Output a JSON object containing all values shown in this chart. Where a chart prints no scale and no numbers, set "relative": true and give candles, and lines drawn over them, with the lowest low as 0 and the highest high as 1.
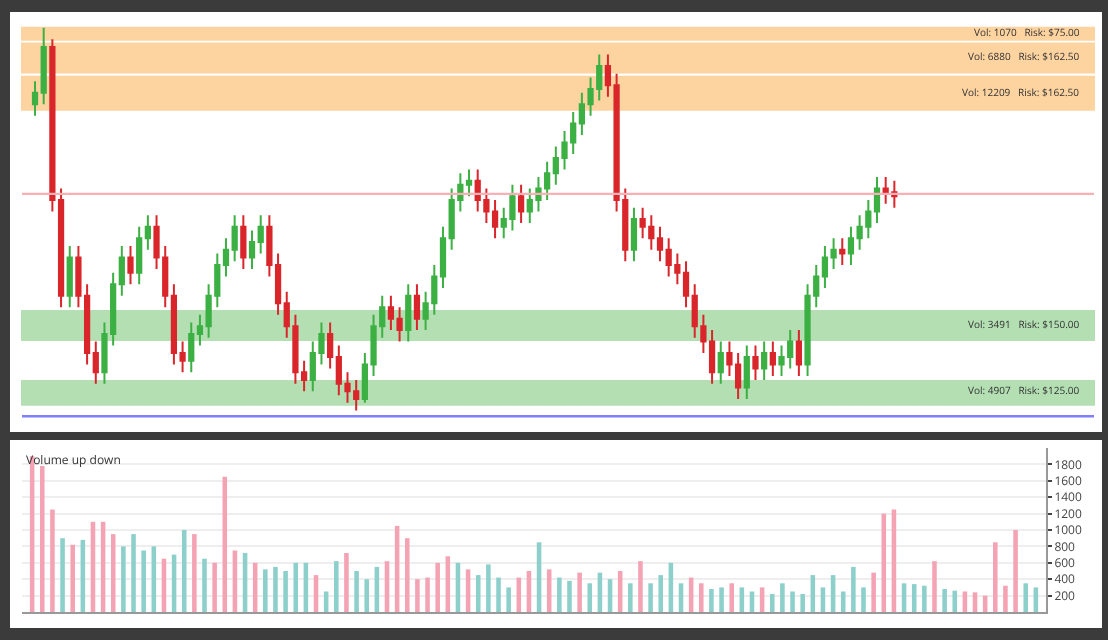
{
  "chart_data": [
    {
      "type": "candlestick",
      "relative": true,
      "categories": [
        null,
        null,
        null,
        null,
        null,
        null,
        null,
        null,
        null,
        null,
        null,
        null,
        null,
        null,
        null,
        null,
        null,
        null,
        null,
        null,
        null,
        null,
        null,
        null,
        null,
        null,
        null,
        null,
        null,
        null,
        null,
        null,
        null,
        null,
        null,
        null,
        null,
        null,
        null,
        null,
        null,
        null,
        null,
        null,
        null,
        null,
        null,
        null,
        null,
        null,
        null,
        null,
        null,
        null,
        null,
        null,
        null,
        null,
        null,
        null,
        null,
        null,
        null,
        null,
        null,
        null,
        null,
        null,
        null,
        null,
        null,
        null,
        null,
        null,
        null,
        null,
        null,
        null,
        null,
        null,
        null,
        null,
        null,
        null,
        null,
        null,
        null,
        null,
        null,
        null,
        null,
        null,
        null,
        null,
        null,
        null,
        null,
        null,
        null,
        null
      ],
      "series": [
        {
          "colors": [
            "#3cb043",
            "#3cb043",
            "#d9262b",
            "#d9262b",
            "#3cb043",
            "#d9262b",
            "#d9262b",
            "#d9262b",
            "#3cb043",
            "#3cb043",
            "#3cb043",
            "#d9262b",
            "#3cb043",
            "#3cb043",
            "#d9262b",
            "#d9262b",
            "#d9262b",
            "#d9262b",
            "#3cb043",
            "#3cb043",
            "#3cb043",
            "#3cb043",
            "#3cb043",
            "#3cb043",
            "#d9262b",
            "#3cb043",
            "#3cb043",
            "#d9262b",
            "#d9262b",
            "#d9262b",
            "#d9262b",
            "#d9262b",
            "#3cb043",
            "#3cb043",
            "#d9262b",
            "#d9262b",
            "#d9262b",
            "#d9262b",
            "#3cb043",
            "#3cb043",
            "#3cb043",
            "#d9262b",
            "#d9262b",
            "#3cb043",
            "#d9262b",
            "#3cb043",
            "#3cb043",
            "#3cb043",
            "#3cb043",
            "#3cb043",
            "#3cb043",
            "#d9262b",
            "#d9262b",
            "#d9262b",
            "#3cb043",
            "#3cb043",
            "#d9262b",
            "#3cb043",
            "#3cb043",
            "#3cb043",
            "#3cb043",
            "#3cb043",
            "#3cb043",
            "#3cb043",
            "#3cb043",
            "#3cb043",
            "#d9262b",
            "#d9262b",
            "#d9262b",
            "#3cb043",
            "#d9262b",
            "#d9262b",
            "#d9262b",
            "#d9262b",
            "#d9262b",
            "#d9262b",
            "#d9262b",
            "#d9262b",
            "#d9262b",
            "#3cb043",
            "#d9262b",
            "#d9262b",
            "#3cb043",
            "#d9262b",
            "#3cb043",
            "#d9262b",
            "#3cb043",
            "#3cb043",
            "#d9262b",
            "#3cb043",
            "#3cb043",
            "#3cb043",
            "#3cb043",
            "#d9262b",
            "#3cb043",
            "#3cb043",
            "#3cb043",
            "#3cb043",
            "#d9262b",
            "#d9262b"
          ],
          "ohlc": [
            [
              0.8,
              0.86,
              0.77,
              0.83
            ],
            [
              0.83,
              1.0,
              0.8,
              0.95
            ],
            [
              0.95,
              0.97,
              0.52,
              0.55
            ],
            [
              0.55,
              0.58,
              0.27,
              0.3
            ],
            [
              0.3,
              0.43,
              0.27,
              0.4
            ],
            [
              0.4,
              0.43,
              0.27,
              0.3
            ],
            [
              0.3,
              0.33,
              0.12,
              0.15
            ],
            [
              0.15,
              0.18,
              0.07,
              0.1
            ],
            [
              0.1,
              0.23,
              0.07,
              0.2
            ],
            [
              0.2,
              0.36,
              0.17,
              0.33
            ],
            [
              0.33,
              0.43,
              0.3,
              0.4
            ],
            [
              0.4,
              0.43,
              0.33,
              0.36
            ],
            [
              0.36,
              0.48,
              0.33,
              0.45
            ],
            [
              0.45,
              0.51,
              0.42,
              0.48
            ],
            [
              0.48,
              0.51,
              0.37,
              0.4
            ],
            [
              0.4,
              0.43,
              0.27,
              0.3
            ],
            [
              0.3,
              0.33,
              0.12,
              0.15
            ],
            [
              0.15,
              0.18,
              0.1,
              0.13
            ],
            [
              0.13,
              0.23,
              0.1,
              0.2
            ],
            [
              0.2,
              0.25,
              0.17,
              0.22
            ],
            [
              0.22,
              0.33,
              0.19,
              0.3
            ],
            [
              0.3,
              0.41,
              0.27,
              0.38
            ],
            [
              0.38,
              0.45,
              0.35,
              0.42
            ],
            [
              0.42,
              0.51,
              0.39,
              0.48
            ],
            [
              0.48,
              0.51,
              0.37,
              0.4
            ],
            [
              0.4,
              0.47,
              0.37,
              0.44
            ],
            [
              0.44,
              0.51,
              0.41,
              0.48
            ],
            [
              0.48,
              0.51,
              0.35,
              0.38
            ],
            [
              0.38,
              0.41,
              0.25,
              0.28
            ],
            [
              0.28,
              0.31,
              0.19,
              0.22
            ],
            [
              0.22,
              0.25,
              0.07,
              0.1
            ],
            [
              0.1,
              0.13,
              0.05,
              0.08
            ],
            [
              0.08,
              0.18,
              0.05,
              0.15
            ],
            [
              0.15,
              0.23,
              0.12,
              0.2
            ],
            [
              0.2,
              0.23,
              0.11,
              0.14
            ],
            [
              0.14,
              0.17,
              0.04,
              0.07
            ],
            [
              0.07,
              0.1,
              0.02,
              0.05
            ],
            [
              0.05,
              0.08,
              0.0,
              0.03
            ],
            [
              0.03,
              0.15,
              0.02,
              0.12
            ],
            [
              0.12,
              0.25,
              0.09,
              0.22
            ],
            [
              0.22,
              0.3,
              0.19,
              0.27
            ],
            [
              0.27,
              0.3,
              0.21,
              0.24
            ],
            [
              0.24,
              0.27,
              0.18,
              0.21
            ],
            [
              0.21,
              0.33,
              0.18,
              0.3
            ],
            [
              0.3,
              0.33,
              0.21,
              0.24
            ],
            [
              0.24,
              0.31,
              0.21,
              0.28
            ],
            [
              0.28,
              0.38,
              0.25,
              0.35
            ],
            [
              0.35,
              0.48,
              0.32,
              0.45
            ],
            [
              0.45,
              0.58,
              0.42,
              0.55
            ],
            [
              0.55,
              0.62,
              0.52,
              0.59
            ],
            [
              0.59,
              0.63,
              0.56,
              0.6
            ],
            [
              0.6,
              0.63,
              0.52,
              0.55
            ],
            [
              0.55,
              0.58,
              0.49,
              0.52
            ],
            [
              0.52,
              0.55,
              0.45,
              0.48
            ],
            [
              0.48,
              0.53,
              0.45,
              0.5
            ],
            [
              0.5,
              0.59,
              0.47,
              0.56
            ],
            [
              0.56,
              0.59,
              0.49,
              0.52
            ],
            [
              0.52,
              0.58,
              0.49,
              0.55
            ],
            [
              0.55,
              0.61,
              0.52,
              0.58
            ],
            [
              0.58,
              0.65,
              0.55,
              0.62
            ],
            [
              0.62,
              0.69,
              0.59,
              0.66
            ],
            [
              0.66,
              0.73,
              0.63,
              0.7
            ],
            [
              0.7,
              0.78,
              0.67,
              0.75
            ],
            [
              0.75,
              0.83,
              0.72,
              0.8
            ],
            [
              0.8,
              0.87,
              0.77,
              0.84
            ],
            [
              0.84,
              0.93,
              0.81,
              0.9
            ],
            [
              0.9,
              0.93,
              0.82,
              0.85
            ],
            [
              0.85,
              0.88,
              0.52,
              0.55
            ],
            [
              0.55,
              0.58,
              0.39,
              0.42
            ],
            [
              0.42,
              0.53,
              0.39,
              0.5
            ],
            [
              0.5,
              0.53,
              0.45,
              0.48
            ],
            [
              0.48,
              0.51,
              0.42,
              0.45
            ],
            [
              0.45,
              0.48,
              0.39,
              0.42
            ],
            [
              0.42,
              0.45,
              0.35,
              0.38
            ],
            [
              0.38,
              0.41,
              0.33,
              0.36
            ],
            [
              0.36,
              0.39,
              0.27,
              0.3
            ],
            [
              0.3,
              0.33,
              0.19,
              0.22
            ],
            [
              0.22,
              0.25,
              0.15,
              0.18
            ],
            [
              0.18,
              0.21,
              0.07,
              0.1
            ],
            [
              0.1,
              0.18,
              0.07,
              0.15
            ],
            [
              0.15,
              0.18,
              0.09,
              0.12
            ],
            [
              0.12,
              0.15,
              0.03,
              0.06
            ],
            [
              0.06,
              0.17,
              0.03,
              0.14
            ],
            [
              0.14,
              0.17,
              0.08,
              0.11
            ],
            [
              0.11,
              0.18,
              0.08,
              0.15
            ],
            [
              0.15,
              0.18,
              0.09,
              0.12
            ],
            [
              0.12,
              0.17,
              0.09,
              0.14
            ],
            [
              0.14,
              0.21,
              0.11,
              0.18
            ],
            [
              0.18,
              0.21,
              0.09,
              0.12
            ],
            [
              0.12,
              0.33,
              0.09,
              0.3
            ],
            [
              0.3,
              0.38,
              0.27,
              0.35
            ],
            [
              0.35,
              0.43,
              0.32,
              0.4
            ],
            [
              0.4,
              0.45,
              0.37,
              0.42
            ],
            [
              0.42,
              0.45,
              0.38,
              0.41
            ],
            [
              0.41,
              0.48,
              0.38,
              0.45
            ],
            [
              0.45,
              0.51,
              0.42,
              0.48
            ],
            [
              0.48,
              0.55,
              0.45,
              0.52
            ],
            [
              0.52,
              0.61,
              0.49,
              0.58
            ],
            [
              0.58,
              0.61,
              0.54,
              0.57
            ],
            [
              0.57,
              0.6,
              0.53,
              0.56
            ]
          ]
        }
      ],
      "bands": [
        {
          "axis": "y",
          "from": 0.969,
          "to": 1.0,
          "label": "Vol: 1070   Risk: $75.00",
          "color": "#fdd3a0"
        },
        {
          "axis": "y",
          "from": 0.883,
          "to": 0.959,
          "label": "Vol: 6880   Risk: $162.50",
          "color": "#fdd3a0"
        },
        {
          "axis": "y",
          "from": 0.786,
          "to": 0.872,
          "label": "Vol: 12209   Risk: $162.50",
          "color": "#fdd3a0"
        },
        {
          "axis": "y",
          "from": 0.184,
          "to": 0.26,
          "label": "Vol: 3491   Risk: $150.00",
          "color": "#b3dfb3"
        },
        {
          "axis": "y",
          "from": 0.015,
          "to": 0.077,
          "label": "Vol: 4907   Risk: $125.00",
          "color": "#b3dfb3"
        }
      ],
      "ref_lines": [
        {
          "axis": "y",
          "value": 0.566,
          "color": "#f7b0b5"
        },
        {
          "axis": "y",
          "value": -0.015,
          "color": "#8080ff"
        }
      ],
      "tick_labels": false
    },
    {
      "type": "bar",
      "title": "Volume up down",
      "categories": [
        null,
        null,
        null,
        null,
        null,
        null,
        null,
        null,
        null,
        null,
        null,
        null,
        null,
        null,
        null,
        null,
        null,
        null,
        null,
        null,
        null,
        null,
        null,
        null,
        null,
        null,
        null,
        null,
        null,
        null,
        null,
        null,
        null,
        null,
        null,
        null,
        null,
        null,
        null,
        null,
        null,
        null,
        null,
        null,
        null,
        null,
        null,
        null,
        null,
        null,
        null,
        null,
        null,
        null,
        null,
        null,
        null,
        null,
        null,
        null,
        null,
        null,
        null,
        null,
        null,
        null,
        null,
        null,
        null,
        null,
        null,
        null,
        null,
        null,
        null,
        null,
        null,
        null,
        null,
        null,
        null,
        null,
        null,
        null,
        null,
        null,
        null,
        null,
        null,
        null,
        null,
        null,
        null,
        null,
        null,
        null,
        null,
        null,
        null,
        null
      ],
      "values": [
        1900,
        1780,
        1250,
        900,
        820,
        880,
        1100,
        1100,
        950,
        800,
        950,
        750,
        800,
        650,
        700,
        1000,
        950,
        650,
        600,
        1650,
        750,
        720,
        600,
        520,
        550,
        500,
        600,
        600,
        450,
        250,
        620,
        720,
        500,
        400,
        550,
        620,
        1050,
        900,
        400,
        420,
        600,
        680,
        600,
        520,
        450,
        580,
        420,
        300,
        420,
        500,
        850,
        520,
        420,
        380,
        480,
        350,
        480,
        400,
        500,
        350,
        620,
        350,
        450,
        600,
        350,
        420,
        350,
        280,
        300,
        350,
        300,
        250,
        300,
        220,
        350,
        250,
        220,
        450,
        300,
        450,
        250,
        550,
        300,
        480,
        1200,
        1250,
        350,
        340,
        320,
        620,
        280,
        260,
        250,
        240,
        200,
        850,
        320,
        1000,
        350,
        300
      ],
      "colors": [
        "#f4a3b4",
        "#f4a3b4",
        "#f4a3b4",
        "#8ccfcb",
        "#f4a3b4",
        "#8ccfcb",
        "#f4a3b4",
        "#f4a3b4",
        "#f4a3b4",
        "#8ccfcb",
        "#8ccfcb",
        "#8ccfcb",
        "#8ccfcb",
        "#f4a3b4",
        "#8ccfcb",
        "#8ccfcb",
        "#f4a3b4",
        "#8ccfcb",
        "#f4a3b4",
        "#f4a3b4",
        "#f4a3b4",
        "#8ccfcb",
        "#f4a3b4",
        "#8ccfcb",
        "#8ccfcb",
        "#8ccfcb",
        "#8ccfcb",
        "#8ccfcb",
        "#f4a3b4",
        "#8ccfcb",
        "#8ccfcb",
        "#f4a3b4",
        "#8ccfcb",
        "#8ccfcb",
        "#8ccfcb",
        "#f4a3b4",
        "#f4a3b4",
        "#f4a3b4",
        "#f4a3b4",
        "#f4a3b4",
        "#f4a3b4",
        "#f4a3b4",
        "#8ccfcb",
        "#f4a3b4",
        "#8ccfcb",
        "#8ccfcb",
        "#8ccfcb",
        "#8ccfcb",
        "#f4a3b4",
        "#f4a3b4",
        "#8ccfcb",
        "#f4a3b4",
        "#8ccfcb",
        "#8ccfcb",
        "#f4a3b4",
        "#8ccfcb",
        "#8ccfcb",
        "#8ccfcb",
        "#f4a3b4",
        "#8ccfcb",
        "#f4a3b4",
        "#8ccfcb",
        "#8ccfcb",
        "#8ccfcb",
        "#8ccfcb",
        "#f4a3b4",
        "#f4a3b4",
        "#8ccfcb",
        "#8ccfcb",
        "#f4a3b4",
        "#8ccfcb",
        "#8ccfcb",
        "#f4a3b4",
        "#8ccfcb",
        "#8ccfcb",
        "#8ccfcb",
        "#8ccfcb",
        "#8ccfcb",
        "#8ccfcb",
        "#8ccfcb",
        "#8ccfcb",
        "#8ccfcb",
        "#8ccfcb",
        "#f4a3b4",
        "#f4a3b4",
        "#f4a3b4",
        "#8ccfcb",
        "#8ccfcb",
        "#8ccfcb",
        "#f4a3b4",
        "#8ccfcb",
        "#8ccfcb",
        "#f4a3b4",
        "#f4a3b4",
        "#f4a3b4",
        "#f4a3b4",
        "#f4a3b4",
        "#f4a3b4",
        "#8ccfcb",
        "#8ccfcb"
      ],
      "ylim": [
        0,
        2000
      ],
      "yticks": [
        200,
        400,
        600,
        800,
        1000,
        1200,
        1400,
        1600,
        1800
      ],
      "grid": "y",
      "tick_labels": "y"
    }
  ]
}
